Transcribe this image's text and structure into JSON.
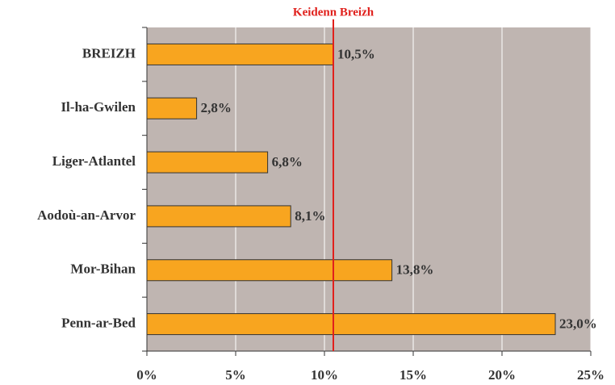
{
  "chart_data": {
    "type": "barh",
    "categories": [
      "BREIZH",
      "Il-ha-Gwilen",
      "Liger-Atlantel",
      "Aodoù-an-Arvor",
      "Mor-Bihan",
      "Penn-ar-Bed"
    ],
    "values": [
      10.5,
      2.8,
      6.8,
      8.1,
      13.8,
      23.0
    ],
    "value_labels": [
      "10,5%",
      "2,8%",
      "6,8%",
      "8,1%",
      "13,8%",
      "23,0%"
    ],
    "color": "#f8a51f",
    "xlim": [
      0,
      25
    ],
    "xticks": [
      {
        "value": 0,
        "label": "0%"
      },
      {
        "value": 5,
        "label": "5%"
      },
      {
        "value": 10,
        "label": "10%"
      },
      {
        "value": 15,
        "label": "15%"
      },
      {
        "value": 20,
        "label": "20%"
      },
      {
        "value": 25,
        "label": "25%"
      }
    ],
    "grid": true,
    "reference_line": {
      "label": "Keidenn Breizh",
      "value": 10.5,
      "color": "#e0201c"
    }
  }
}
